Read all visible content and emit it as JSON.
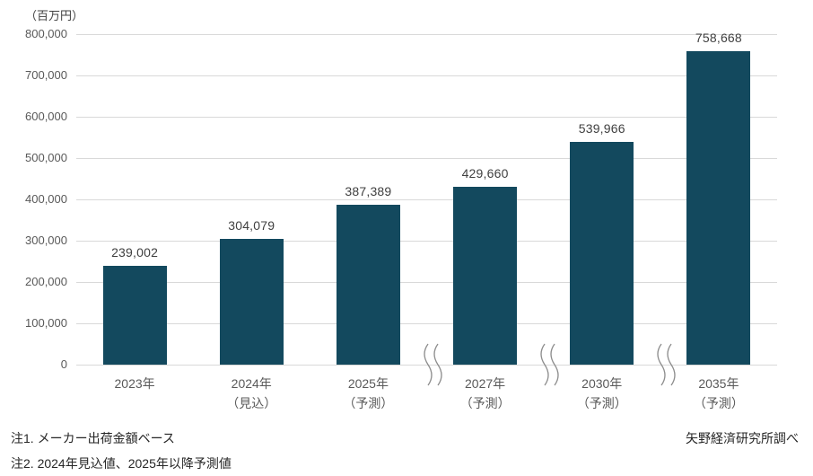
{
  "chart_data": {
    "type": "bar",
    "title": "",
    "unit_label": "（百万円）",
    "xlabel": "",
    "ylabel": "百万円",
    "ylim": [
      0,
      800000
    ],
    "grid": true,
    "legend": false,
    "categories": [
      {
        "year": "2023年",
        "qualifier": ""
      },
      {
        "year": "2024年",
        "qualifier": "（見込）"
      },
      {
        "year": "2025年",
        "qualifier": "（予測）"
      },
      {
        "year": "2027年",
        "qualifier": "（予測）"
      },
      {
        "year": "2030年",
        "qualifier": "（予測）"
      },
      {
        "year": "2035年",
        "qualifier": "（予測）"
      }
    ],
    "values": [
      239002,
      304079,
      387389,
      429660,
      539966,
      758668
    ],
    "value_labels": [
      "239,002",
      "304,079",
      "387,389",
      "429,660",
      "539,966",
      "758,668"
    ],
    "y_ticks": [
      "0",
      "100,000",
      "200,000",
      "300,000",
      "400,000",
      "500,000",
      "600,000",
      "700,000",
      "800,000"
    ],
    "axis_breaks_after": [
      2,
      3,
      4
    ],
    "bar_color": "#13495E",
    "gridline_color": "#D9D9D9",
    "break_mark_color": "#8C8C8C"
  },
  "notes": {
    "note1": "注1. メーカー出荷金額ベース",
    "note2": "注2. 2024年見込値、2025年以降予測値",
    "source": "矢野経済研究所調べ"
  }
}
